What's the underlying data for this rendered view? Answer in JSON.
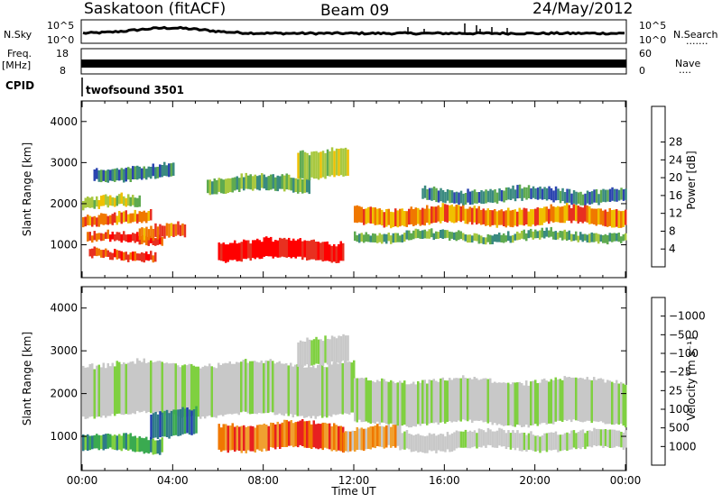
{
  "header": {
    "station": "Saskatoon (fitACF)",
    "beam": "Beam 09",
    "date": "24/May/2012"
  },
  "panels": {
    "nsky": {
      "label": "N.Sky",
      "tick_top": "10^5",
      "tick_bottom": "10^0",
      "right_label": "N.Search",
      "right_tick_top": "10^5",
      "right_tick_bottom": "10^0",
      "right_legend": "·······"
    },
    "freq": {
      "label_line1": "Freq.",
      "label_line2": "[MHz]",
      "tick_top": "18",
      "tick_bottom": "8",
      "right_label": "Nave",
      "right_tick_top": "60",
      "right_tick_bottom": "0",
      "right_legend": "····"
    },
    "cpid": {
      "label": "CPID",
      "value": "twofsound 3501"
    }
  },
  "chart_data": [
    {
      "type": "heatmap",
      "name": "power",
      "ylabel": "Slant Range [km]",
      "yticks": [
        1000,
        2000,
        3000,
        4000
      ],
      "ylim": [
        200,
        4500
      ],
      "xlim": [
        0,
        24
      ],
      "colorbar": {
        "label": "Power [dB]",
        "ticks": [
          "4",
          "8",
          "12",
          "16",
          "20",
          "24",
          "28"
        ],
        "colors": [
          "#0000ff",
          "#2b44b0",
          "#3a8a80",
          "#5faa50",
          "#a8c840",
          "#f0c000",
          "#f07800",
          "#e83020",
          "#ff0000"
        ]
      },
      "bands": [
        {
          "t0": 0.0,
          "t1": 3.0,
          "r0": 1500,
          "r1": 1750,
          "level": 6
        },
        {
          "t0": 0.0,
          "t1": 2.5,
          "r0": 1900,
          "r1": 2150,
          "level": 4
        },
        {
          "t0": 0.2,
          "t1": 3.5,
          "r0": 1050,
          "r1": 1250,
          "level": 7
        },
        {
          "t0": 0.3,
          "t1": 3.2,
          "r0": 650,
          "r1": 850,
          "level": 7
        },
        {
          "t0": 2.5,
          "t1": 4.5,
          "r0": 1150,
          "r1": 1450,
          "level": 6
        },
        {
          "t0": 6.0,
          "t1": 11.5,
          "r0": 650,
          "r1": 1100,
          "level": 8
        },
        {
          "t0": 5.5,
          "t1": 10.0,
          "r0": 2300,
          "r1": 2650,
          "level": 3
        },
        {
          "t0": 9.5,
          "t1": 11.7,
          "r0": 2650,
          "r1": 3300,
          "level": 4
        },
        {
          "t0": 12.0,
          "t1": 24.0,
          "r0": 1500,
          "r1": 1900,
          "level": 6
        },
        {
          "t0": 12.0,
          "t1": 24.0,
          "r0": 1100,
          "r1": 1300,
          "level": 3
        },
        {
          "t0": 15.0,
          "t1": 24.0,
          "r0": 2050,
          "r1": 2350,
          "level": 2
        },
        {
          "t0": 0.5,
          "t1": 4.0,
          "r0": 2600,
          "r1": 2900,
          "level": 2
        }
      ]
    },
    {
      "type": "heatmap",
      "name": "velocity",
      "ylabel": "Slant Range [km]",
      "yticks": [
        1000,
        2000,
        3000,
        4000
      ],
      "ylim": [
        200,
        4500
      ],
      "xlim": [
        0,
        24
      ],
      "xticks": [
        "00:00",
        "04:00",
        "08:00",
        "12:00",
        "16:00",
        "20:00",
        "00:00"
      ],
      "xlabel": "Time UT",
      "colorbar": {
        "label": "Velocity [m s⁻¹]",
        "ticks": [
          "1000",
          "500",
          "100",
          "25",
          "−25",
          "−100",
          "−500",
          "−1000"
        ],
        "colors": [
          "#1f3cb0",
          "#2e7a88",
          "#3aaa50",
          "#7fd040",
          "#c8c8c8",
          "#c8c8c8",
          "#f0a030",
          "#f07800",
          "#e82020"
        ]
      },
      "bands": [
        {
          "t0": 0.0,
          "t1": 12.0,
          "r0": 1500,
          "r1": 2700,
          "level": 4
        },
        {
          "t0": 12.0,
          "t1": 24.0,
          "r0": 1300,
          "r1": 2300,
          "level": 4
        },
        {
          "t0": 0.0,
          "t1": 3.5,
          "r0": 650,
          "r1": 1000,
          "level": 2
        },
        {
          "t0": 3.0,
          "t1": 5.0,
          "r0": 1000,
          "r1": 1600,
          "level": 1
        },
        {
          "t0": 6.0,
          "t1": 11.5,
          "r0": 700,
          "r1": 1300,
          "level": 7
        },
        {
          "t0": 11.5,
          "t1": 14.0,
          "r0": 700,
          "r1": 1200,
          "level": 6
        },
        {
          "t0": 14.0,
          "t1": 24.0,
          "r0": 700,
          "r1": 1100,
          "level": 4
        },
        {
          "t0": 9.5,
          "t1": 11.7,
          "r0": 2700,
          "r1": 3300,
          "level": 4
        }
      ]
    }
  ]
}
